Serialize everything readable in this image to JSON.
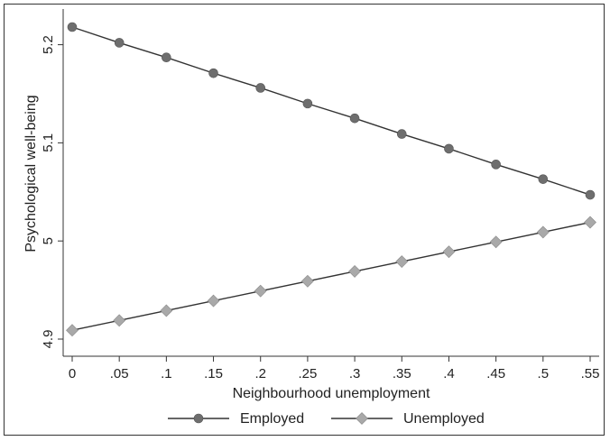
{
  "chart_data": {
    "type": "line",
    "title": "",
    "xlabel": "Neighbourhood unemployment",
    "ylabel": "Psychological well-being",
    "xlim": [
      0,
      0.55
    ],
    "ylim": [
      4.9,
      5.22
    ],
    "x": [
      0,
      0.05,
      0.1,
      0.15,
      0.2,
      0.25,
      0.3,
      0.35,
      0.4,
      0.45,
      0.5,
      0.55
    ],
    "x_tick_labels": [
      "0",
      ".05",
      ".1",
      ".15",
      ".2",
      ".25",
      ".3",
      ".35",
      ".4",
      ".45",
      ".5",
      ".55"
    ],
    "y_ticks": [
      4.9,
      5,
      5.1,
      5.2
    ],
    "y_tick_labels": [
      "4.9",
      "5",
      "5.1",
      "5.2"
    ],
    "grid": false,
    "legend_position": "bottom",
    "series": [
      {
        "name": "Employed",
        "marker": "circle",
        "color": "#6e6e6e",
        "values": [
          5.218,
          5.202,
          5.187,
          5.171,
          5.156,
          5.14,
          5.125,
          5.109,
          5.094,
          5.078,
          5.063,
          5.047
        ]
      },
      {
        "name": "Unemployed",
        "marker": "diamond",
        "color": "#a9a9a9",
        "values": [
          4.909,
          4.919,
          4.929,
          4.939,
          4.949,
          4.959,
          4.969,
          4.979,
          4.989,
          4.999,
          5.009,
          5.019
        ]
      }
    ]
  }
}
